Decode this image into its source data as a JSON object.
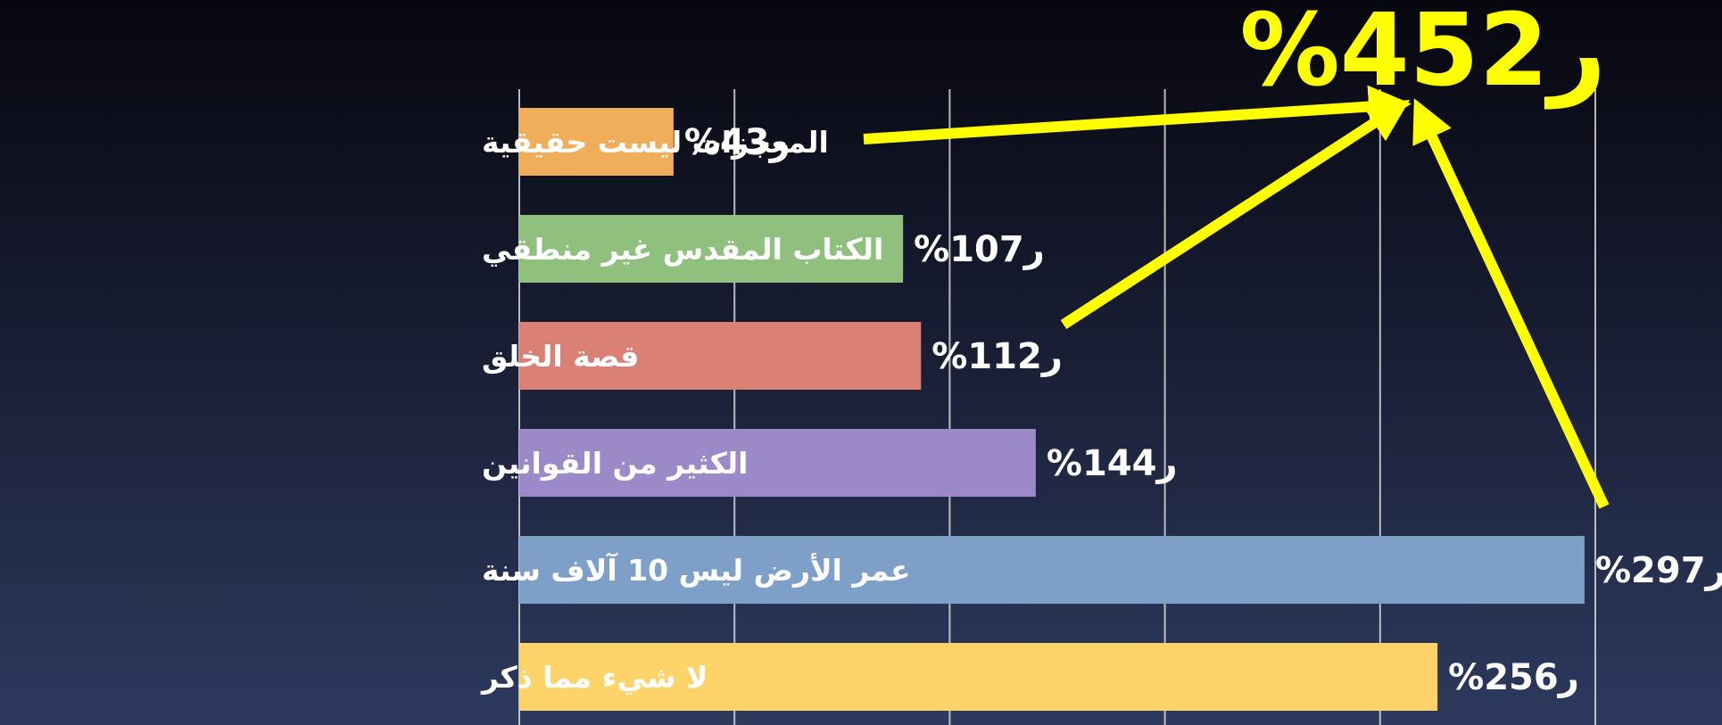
{
  "chart_data": {
    "type": "bar",
    "orientation": "horizontal",
    "categories": [
      "المعجزات ليست حقيقية",
      "الكتاب المقدس غير منطقي",
      "قصة الخلق",
      "الكثير من القوانين",
      "عمر الأرض ليس 10 آلاف سنة",
      "لا شيء مما ذكر"
    ],
    "values": [
      4.3,
      10.7,
      11.2,
      14.4,
      29.7,
      25.6
    ],
    "value_labels": [
      "%4ر3",
      "%10ر7",
      "%11ر2",
      "%14ر4",
      "%29ر7",
      "%25ر6"
    ],
    "colors": [
      "#f0ae5a",
      "#8fc07e",
      "#db8074",
      "#9c8ac8",
      "#7ea0c8",
      "#fdd36a"
    ],
    "xlim": [
      0,
      30
    ],
    "grid": true,
    "annotation": {
      "text": "%45ر2",
      "color": "#ffff00",
      "arrows_from": [
        "المعجزات ليست حقيقية",
        "قصة الخلق",
        "عمر الأرض ليس 10 آلاف سنة"
      ]
    }
  }
}
